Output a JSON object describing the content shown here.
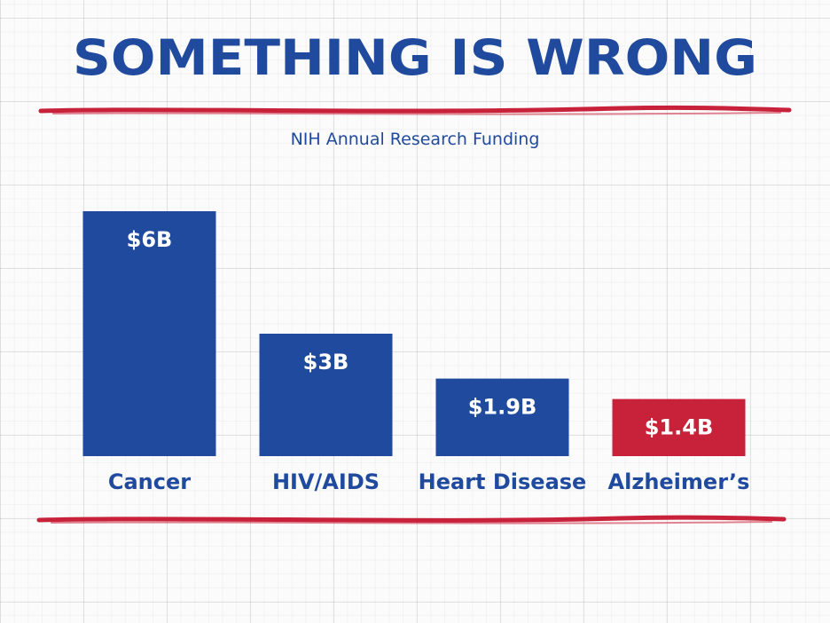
{
  "headline": "SOMETHING IS WRONG",
  "colors": {
    "primary": "#1f4a9e",
    "highlight": "#c8213a",
    "rule": "#c8213a",
    "grid_background": "#fbfbfb"
  },
  "chart_data": {
    "type": "bar",
    "title": "NIH Annual Research Funding",
    "categories": [
      "Cancer",
      "HIV/AIDS",
      "Heart Disease",
      "Alzheimer’s"
    ],
    "values": [
      6,
      3,
      1.9,
      1.4
    ],
    "unit": "billion USD",
    "value_labels": [
      "$6B",
      "$3B",
      "$1.9B",
      "$1.4B"
    ],
    "bar_colors": [
      "#1f4a9e",
      "#1f4a9e",
      "#1f4a9e",
      "#c8213a"
    ],
    "highlighted_category": "Alzheimer’s",
    "ylim": [
      0,
      6
    ],
    "xlabel": "",
    "ylabel": "",
    "grid": false,
    "legend": "none"
  }
}
